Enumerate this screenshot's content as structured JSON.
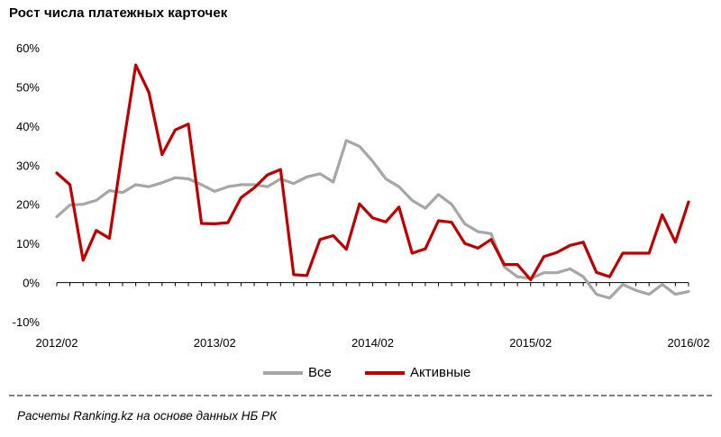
{
  "title": "Рост числа платежных карточек",
  "source": "Расчеты Ranking.kz на основе данных НБ РК",
  "chart_data": {
    "type": "line",
    "title": "Рост числа платежных карточек",
    "xlabel": "",
    "ylabel": "",
    "ylim": [
      -10,
      60
    ],
    "ytick_labels": [
      "-10%",
      "0%",
      "10%",
      "20%",
      "30%",
      "40%",
      "50%",
      "60%"
    ],
    "xtick_labels": [
      "2012/02",
      "2013/02",
      "2014/02",
      "2015/02",
      "2016/02"
    ],
    "x_range": [
      "2012/02",
      "2016/02"
    ],
    "grid": false,
    "legend": "bottom",
    "series": [
      {
        "name": "Все",
        "color": "#a6a6a6",
        "values": [
          16.8,
          19.8,
          20,
          21,
          23.5,
          23,
          25,
          24.5,
          25.5,
          26.8,
          26.5,
          25,
          23.3,
          24.5,
          25,
          25,
          24.5,
          26.5,
          25.3,
          27,
          27.8,
          25.7,
          36.3,
          34.8,
          31,
          26.5,
          24.5,
          21,
          19,
          22.5,
          20,
          15,
          13,
          12.5,
          4,
          1.5,
          1,
          2.5,
          2.5,
          3.5,
          1.5,
          -3,
          -4,
          -0.5,
          -2,
          -3,
          -0.5,
          -3,
          -2.3
        ]
      },
      {
        "name": "Активные",
        "color": "#c00000",
        "values": [
          28,
          25,
          5.7,
          13.3,
          11.3,
          34,
          55.6,
          48.6,
          32.7,
          39,
          40.5,
          15.1,
          15,
          15.3,
          21.7,
          24.2,
          27.5,
          28.9,
          2,
          1.8,
          11,
          12,
          8.5,
          20.1,
          16.5,
          15.5,
          19.3,
          7.5,
          8.6,
          15.8,
          15.4,
          10,
          8.8,
          11,
          4.6,
          4.6,
          0.7,
          6.6,
          7.7,
          9.5,
          10.3,
          2.6,
          1.5,
          7.5,
          7.5,
          7.5,
          17.3,
          10.3,
          20.6
        ]
      }
    ]
  }
}
